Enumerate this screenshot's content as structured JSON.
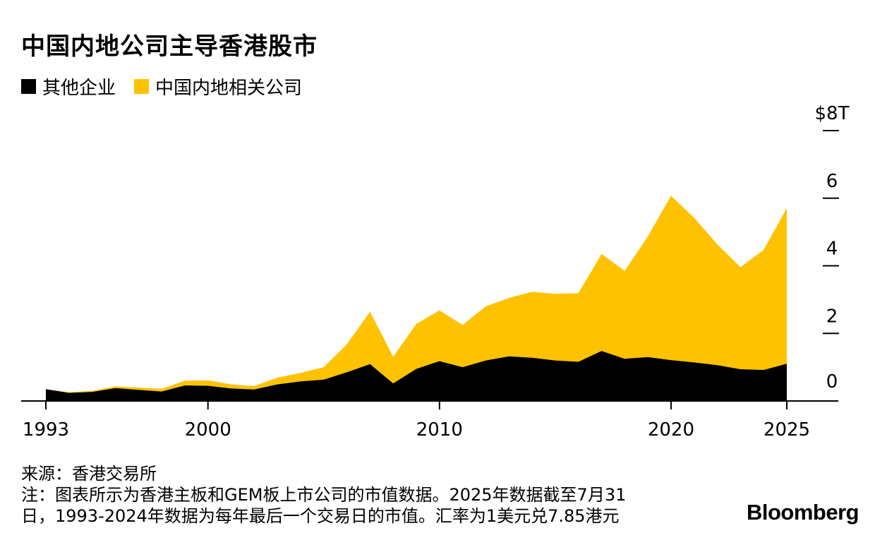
{
  "title": "中国内地公司主导香港股市",
  "legend": [
    {
      "label": "其他企业",
      "color": "#000000"
    },
    {
      "label": "中国内地相关公司",
      "color": "#FFC200"
    }
  ],
  "footer": {
    "source": "来源：香港交易所",
    "note_line1": "注：图表所示为香港主板和GEM板上市公司的市值数据。2025年数据截至7月31",
    "note_line2": "日，1993-2024年数据为每年最后一个交易日的市值。汇率为1美元兑7.85港元"
  },
  "brand": "Bloomberg",
  "chart_data": {
    "type": "area",
    "stacked": true,
    "x": [
      1993,
      1994,
      1995,
      1996,
      1997,
      1998,
      1999,
      2000,
      2001,
      2002,
      2003,
      2004,
      2005,
      2006,
      2007,
      2008,
      2009,
      2010,
      2011,
      2012,
      2013,
      2014,
      2015,
      2016,
      2017,
      2018,
      2019,
      2020,
      2021,
      2022,
      2023,
      2024,
      2025
    ],
    "series": [
      {
        "name": "其他企业",
        "color": "#000000",
        "values": [
          0.35,
          0.24,
          0.27,
          0.38,
          0.33,
          0.28,
          0.46,
          0.45,
          0.37,
          0.34,
          0.49,
          0.58,
          0.63,
          0.85,
          1.09,
          0.52,
          0.95,
          1.18,
          1.0,
          1.2,
          1.32,
          1.28,
          1.2,
          1.16,
          1.48,
          1.25,
          1.3,
          1.21,
          1.14,
          1.06,
          0.94,
          0.92,
          1.1
        ]
      },
      {
        "name": "中国内地相关公司",
        "color": "#FFC200",
        "values": [
          0.0,
          0.02,
          0.03,
          0.05,
          0.07,
          0.08,
          0.14,
          0.16,
          0.12,
          0.1,
          0.2,
          0.25,
          0.37,
          0.83,
          1.55,
          0.79,
          1.33,
          1.5,
          1.25,
          1.6,
          1.73,
          1.95,
          1.97,
          2.03,
          2.87,
          2.6,
          3.57,
          4.86,
          4.28,
          3.57,
          3.02,
          3.55,
          4.61
        ]
      }
    ],
    "y_ticks": [
      {
        "value": 0,
        "label": "0"
      },
      {
        "value": 2,
        "label": "2"
      },
      {
        "value": 4,
        "label": "4"
      },
      {
        "value": 6,
        "label": "6"
      },
      {
        "value": 8,
        "label": "$8T"
      }
    ],
    "x_ticks": [
      {
        "value": 1993,
        "label": "1993"
      },
      {
        "value": 2000,
        "label": "2000"
      },
      {
        "value": 2010,
        "label": "2010"
      },
      {
        "value": 2020,
        "label": "2020"
      },
      {
        "value": 2025,
        "label": "2025"
      }
    ],
    "ylim": [
      0,
      8
    ],
    "xlim": [
      1993,
      2025
    ],
    "y_axis_position": "right"
  }
}
